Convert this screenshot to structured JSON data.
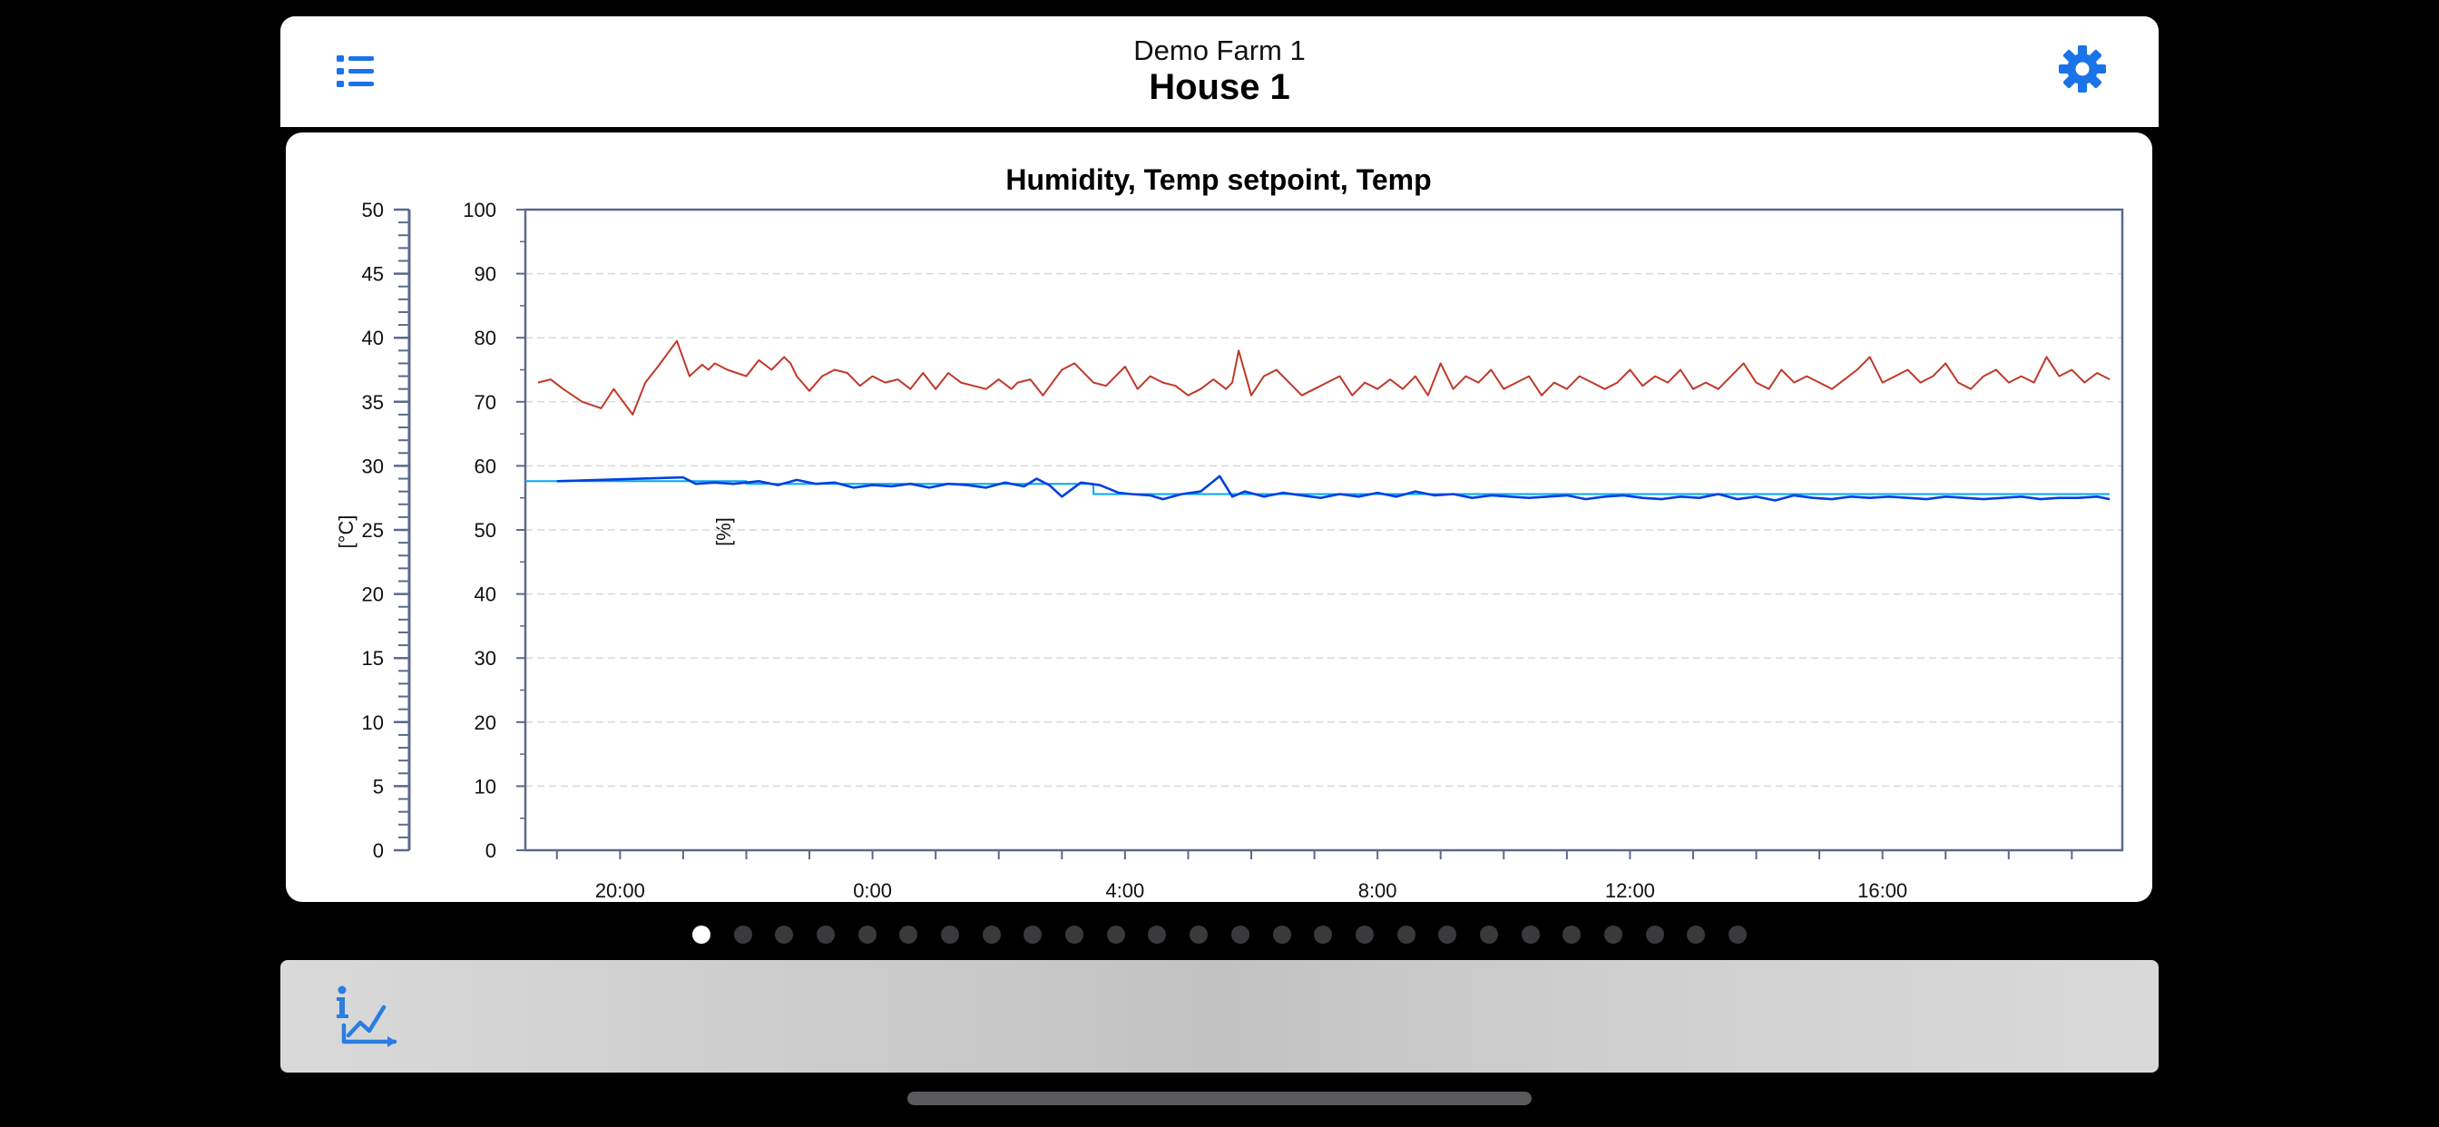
{
  "header": {
    "subtitle": "Demo Farm 1",
    "title": "House 1",
    "menu_icon": "list-icon",
    "settings_icon": "gear-icon",
    "accent": "#1a73e8"
  },
  "chart_data": {
    "type": "line",
    "title": "Humidity, Temp setpoint, Temp",
    "left_axis": {
      "label": "[°C]",
      "ticks": [
        0,
        5,
        10,
        15,
        20,
        25,
        30,
        35,
        40,
        45,
        50
      ],
      "range": [
        0,
        50
      ]
    },
    "right_axis": {
      "label": "[%]",
      "ticks": [
        0,
        10,
        20,
        30,
        40,
        50,
        60,
        70,
        80,
        90,
        100
      ],
      "range": [
        0,
        100
      ]
    },
    "x_ticks": [
      "20:00",
      "0:00",
      "4:00",
      "8:00",
      "12:00",
      "16:00"
    ],
    "x_range_hours": [
      -5.5,
      19.8
    ],
    "grid": true,
    "series": [
      {
        "axis": "percent",
        "color": "#c0392b",
        "x": [
          -5.3,
          -5.1,
          -4.9,
          -4.6,
          -4.3,
          -4.1,
          -3.8,
          -3.6,
          -3.4,
          -3.1,
          -2.9,
          -2.7,
          -2.6,
          -2.5,
          -2.3,
          -2.0,
          -1.8,
          -1.6,
          -1.4,
          -1.3,
          -1.2,
          -1.0,
          -0.8,
          -0.6,
          -0.4,
          -0.2,
          0.0,
          0.2,
          0.4,
          0.6,
          0.8,
          1.0,
          1.2,
          1.4,
          1.6,
          1.8,
          2.0,
          2.2,
          2.3,
          2.5,
          2.7,
          3.0,
          3.2,
          3.5,
          3.7,
          4.0,
          4.2,
          4.4,
          4.6,
          4.8,
          5.0,
          5.2,
          5.4,
          5.6,
          5.7,
          5.8,
          6.0,
          6.2,
          6.4,
          6.6,
          6.8,
          7.0,
          7.2,
          7.4,
          7.6,
          7.8,
          8.0,
          8.2,
          8.4,
          8.6,
          8.8,
          9.0,
          9.2,
          9.4,
          9.6,
          9.8,
          10.0,
          10.2,
          10.4,
          10.6,
          10.8,
          11.0,
          11.2,
          11.4,
          11.6,
          11.8,
          12.0,
          12.2,
          12.4,
          12.6,
          12.8,
          13.0,
          13.2,
          13.4,
          13.6,
          13.8,
          14.0,
          14.2,
          14.4,
          14.6,
          14.8,
          15.0,
          15.2,
          15.4,
          15.6,
          15.8,
          16.0,
          16.2,
          16.4,
          16.6,
          16.8,
          17.0,
          17.2,
          17.4,
          17.6,
          17.8,
          18.0,
          18.2,
          18.4,
          18.6,
          18.8,
          19.0,
          19.2,
          19.4,
          19.6
        ],
        "y": [
          73,
          73.5,
          72,
          70,
          69,
          72,
          68,
          73,
          75.5,
          79.5,
          74,
          75.8,
          75,
          76,
          75,
          74,
          76.5,
          75,
          77,
          76,
          74,
          71.7,
          74,
          75,
          74.5,
          72.5,
          74,
          73,
          73.5,
          72,
          74.5,
          72,
          74.5,
          73,
          72.5,
          72,
          73.5,
          72,
          73,
          73.5,
          71,
          75,
          76,
          73,
          72.5,
          75.5,
          72,
          74,
          73,
          72.5,
          71,
          72,
          73.5,
          72,
          73,
          78,
          71,
          74,
          75,
          73,
          71,
          72,
          73,
          74,
          71,
          73,
          72,
          73.5,
          72,
          74,
          71,
          76,
          72,
          74,
          73,
          75,
          72,
          73,
          74,
          71,
          73,
          72,
          74,
          73,
          72,
          73,
          75,
          72.5,
          74,
          73,
          75,
          72,
          73,
          72,
          74,
          76,
          73,
          72,
          75,
          73,
          74,
          73,
          72,
          73.5,
          75,
          77,
          73,
          74,
          75,
          73,
          74,
          76,
          73,
          72,
          74,
          75,
          73,
          74,
          73,
          77,
          74,
          75,
          73,
          74.5,
          73.5
        ]
      },
      {
        "axis": "celsius",
        "color": "#00a8f0",
        "x": [
          -5.5,
          -2.0,
          -2.0,
          3.5,
          3.5,
          19.6
        ],
        "y": [
          28.8,
          28.8,
          28.6,
          28.6,
          27.8,
          27.8
        ]
      },
      {
        "axis": "celsius",
        "color": "#0040e0",
        "x": [
          -5.0,
          -3.0,
          -2.8,
          -2.5,
          -2.2,
          -1.8,
          -1.5,
          -1.2,
          -0.9,
          -0.6,
          -0.3,
          0.0,
          0.3,
          0.6,
          0.9,
          1.2,
          1.5,
          1.8,
          2.1,
          2.4,
          2.6,
          2.8,
          3.0,
          3.3,
          3.6,
          3.9,
          4.1,
          4.4,
          4.6,
          4.9,
          5.2,
          5.5,
          5.7,
          5.9,
          6.2,
          6.5,
          6.8,
          7.1,
          7.4,
          7.7,
          8.0,
          8.3,
          8.6,
          8.9,
          9.2,
          9.5,
          9.8,
          10.1,
          10.4,
          10.7,
          11.0,
          11.3,
          11.6,
          11.9,
          12.2,
          12.5,
          12.8,
          13.1,
          13.4,
          13.7,
          14.0,
          14.3,
          14.6,
          14.9,
          15.2,
          15.5,
          15.8,
          16.1,
          16.4,
          16.7,
          17.0,
          17.3,
          17.6,
          17.9,
          18.2,
          18.5,
          18.8,
          19.1,
          19.4,
          19.6
        ],
        "y": [
          28.8,
          29.1,
          28.6,
          28.7,
          28.6,
          28.8,
          28.5,
          28.9,
          28.6,
          28.7,
          28.3,
          28.5,
          28.4,
          28.6,
          28.3,
          28.6,
          28.5,
          28.3,
          28.7,
          28.4,
          29.0,
          28.5,
          27.6,
          28.7,
          28.5,
          27.9,
          27.8,
          27.7,
          27.4,
          27.8,
          28.0,
          29.2,
          27.6,
          28.0,
          27.6,
          27.9,
          27.7,
          27.5,
          27.8,
          27.6,
          27.9,
          27.6,
          28.0,
          27.7,
          27.8,
          27.5,
          27.7,
          27.6,
          27.5,
          27.6,
          27.7,
          27.4,
          27.6,
          27.7,
          27.5,
          27.4,
          27.6,
          27.5,
          27.8,
          27.4,
          27.6,
          27.3,
          27.7,
          27.5,
          27.4,
          27.6,
          27.5,
          27.6,
          27.5,
          27.4,
          27.6,
          27.5,
          27.4,
          27.5,
          27.6,
          27.4,
          27.5,
          27.5,
          27.6,
          27.4
        ]
      }
    ]
  },
  "pager": {
    "count": 26,
    "active": 0
  },
  "toolbar": {
    "info_icon": "info-chart-icon"
  }
}
